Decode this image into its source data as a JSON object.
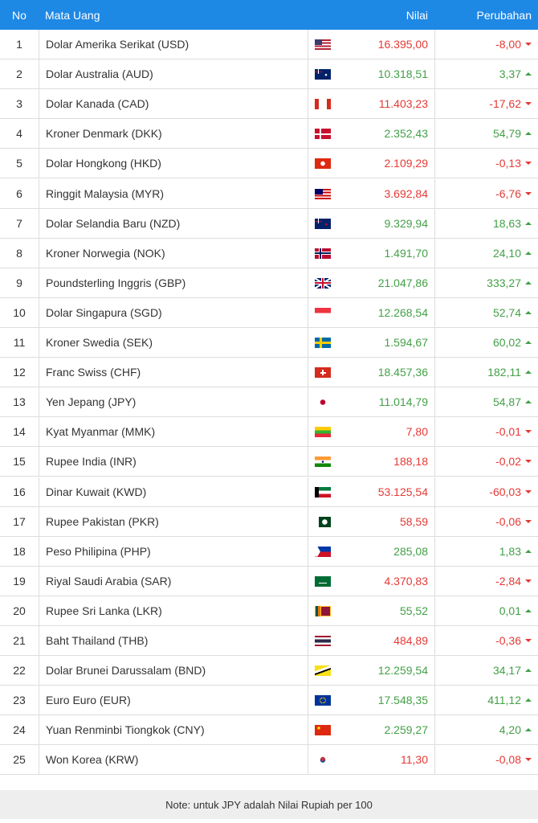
{
  "table": {
    "header": [
      "No",
      "Mata Uang",
      "Nilai",
      "Perubahan"
    ],
    "rows": [
      [
        "1",
        "Dolar Amerika Serikat (USD)",
        "16.395,00",
        "-8,00"
      ],
      [
        "2",
        "Dolar Australia (AUD)",
        "10.318,51",
        "3,37"
      ],
      [
        "3",
        "Dolar Kanada (CAD)",
        "11.403,23",
        "-17,62"
      ],
      [
        "4",
        "Kroner Denmark (DKK)",
        "2.352,43",
        "54,79"
      ],
      [
        "5",
        "Dolar Hongkong (HKD)",
        "2.109,29",
        "-0,13"
      ],
      [
        "6",
        "Ringgit Malaysia (MYR)",
        "3.692,84",
        "-6,76"
      ],
      [
        "7",
        "Dolar Selandia Baru (NZD)",
        "9.329,94",
        "18,63"
      ],
      [
        "8",
        "Kroner Norwegia (NOK)",
        "1.491,70",
        "24,10"
      ],
      [
        "9",
        "Poundsterling Inggris (GBP)",
        "21.047,86",
        "333,27"
      ],
      [
        "10",
        "Dolar Singapura (SGD)",
        "12.268,54",
        "52,74"
      ],
      [
        "11",
        "Kroner Swedia (SEK)",
        "1.594,67",
        "60,02"
      ],
      [
        "12",
        "Franc Swiss (CHF)",
        "18.457,36",
        "182,11"
      ],
      [
        "13",
        "Yen Jepang (JPY)",
        "11.014,79",
        "54,87"
      ],
      [
        "14",
        "Kyat Myanmar (MMK)",
        "7,80",
        "-0,01"
      ],
      [
        "15",
        "Rupee India (INR)",
        "188,18",
        "-0,02"
      ],
      [
        "16",
        "Dinar Kuwait (KWD)",
        "53.125,54",
        "-60,03"
      ],
      [
        "17",
        "Rupee Pakistan (PKR)",
        "58,59",
        "-0,06"
      ],
      [
        "18",
        "Peso Philipina (PHP)",
        "285,08",
        "1,83"
      ],
      [
        "19",
        "Riyal Saudi Arabia (SAR)",
        "4.370,83",
        "-2,84"
      ],
      [
        "20",
        "Rupee Sri Lanka (LKR)",
        "55,52",
        "0,01"
      ],
      [
        "21",
        "Baht Thailand (THB)",
        "484,89",
        "-0,36"
      ],
      [
        "22",
        "Dolar Brunei Darussalam (BND)",
        "12.259,54",
        "34,17"
      ],
      [
        "23",
        "Euro Euro (EUR)",
        "17.548,35",
        "411,12"
      ],
      [
        "24",
        "Yuan Renminbi Tiongkok (CNY)",
        "2.259,27",
        "4,20"
      ],
      [
        "25",
        "Won Korea (KRW)",
        "11,30",
        "-0,08"
      ]
    ]
  },
  "note": "Note: untuk JPY adalah Nilai Rupiah per 100"
}
